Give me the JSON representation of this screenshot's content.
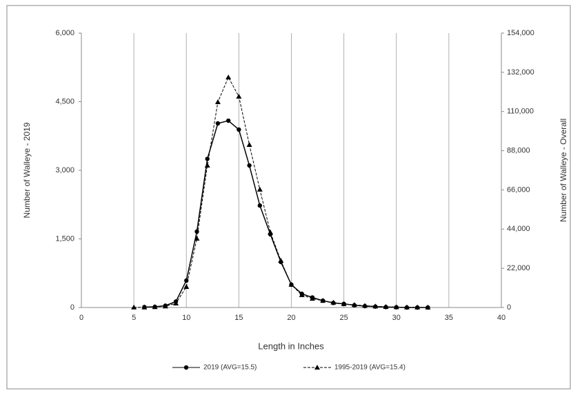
{
  "chart_data": {
    "type": "line",
    "x_label": "Length in Inches",
    "y_label": "Number of Walleye - 2019",
    "y2_label": "Number of Walleye - Overall",
    "x": [
      5,
      6,
      7,
      8,
      9,
      10,
      11,
      12,
      13,
      14,
      15,
      16,
      17,
      18,
      19,
      20,
      21,
      22,
      23,
      24,
      25,
      26,
      27,
      28,
      29,
      30,
      31,
      32,
      33
    ],
    "xlim": [
      0,
      40
    ],
    "xticks": [
      0,
      5,
      10,
      15,
      20,
      25,
      30,
      35,
      40
    ],
    "ylim": [
      0,
      6000
    ],
    "yticks": [
      0,
      {
        "value": 1500,
        "label": "1,500"
      },
      {
        "value": 3000,
        "label": "3,000"
      },
      {
        "value": 4500,
        "label": "4,500"
      },
      {
        "value": 6000,
        "label": "6,000"
      }
    ],
    "y2lim": [
      0,
      154000
    ],
    "y2ticks": [
      0,
      {
        "value": 22000,
        "label": "22,000"
      },
      {
        "value": 44000,
        "label": "44,000"
      },
      {
        "value": 66000,
        "label": "66,000"
      },
      {
        "value": 88000,
        "label": "88,000"
      },
      {
        "value": 110000,
        "label": "110,000"
      },
      {
        "value": 132000,
        "label": "132,000"
      },
      {
        "value": 154000,
        "label": "154,000"
      }
    ],
    "grid": "x",
    "legend": "bottom",
    "series": [
      {
        "name": "2019 (AVG=15.5)",
        "color": "#000000",
        "line_style": "solid",
        "marker": "circle",
        "values": [
          null,
          10,
          15,
          40,
          130,
          590,
          1660,
          3250,
          4025,
          4085,
          3890,
          3105,
          2230,
          1600,
          995,
          500,
          300,
          220,
          150,
          100,
          80,
          50,
          30,
          20,
          10,
          5,
          0,
          0,
          0
        ]
      },
      {
        "name": "1995-2019 (AVG=15.4)",
        "color": "#000000",
        "line_style": "dashed",
        "marker": "triangle",
        "axis": "y2",
        "values": [
          100,
          100,
          300,
          700,
          2300,
          11600,
          38700,
          79700,
          115300,
          129200,
          118400,
          91300,
          66200,
          42200,
          26300,
          12800,
          7000,
          5000,
          3800,
          2800,
          2000,
          1500,
          1000,
          700,
          400,
          250,
          150,
          100,
          50
        ]
      }
    ]
  }
}
